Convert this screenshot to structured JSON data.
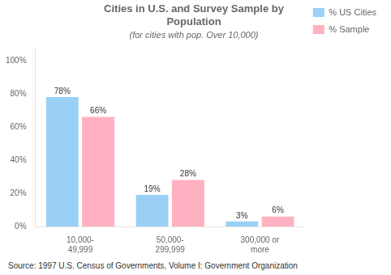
{
  "chart_data": {
    "type": "bar",
    "title": "Cities in U.S. and Survey Sample by\nPopulation",
    "subtitle": "(for cities with pop. Over 10,000)",
    "annotation": "Source: 1997 U.S. Census of Governments, Volume I: Government Organization",
    "categories": [
      "10,000-\n49,999",
      "50,000-\n299,999",
      "300,000 or\nmore"
    ],
    "series": [
      {
        "name": "% US Cities",
        "values": [
          78,
          19,
          3
        ],
        "value_labels": [
          "78%",
          "19%",
          "3%"
        ]
      },
      {
        "name": "% Sample",
        "values": [
          66,
          28,
          6
        ],
        "value_labels": [
          "66%",
          "28%",
          "6%"
        ]
      }
    ],
    "ylim": [
      0,
      108
    ],
    "yticks": [
      {
        "value": 0,
        "label": "0%"
      },
      {
        "value": 20,
        "label": "20%"
      },
      {
        "value": 40,
        "label": "40%"
      },
      {
        "value": 60,
        "label": "60%"
      },
      {
        "value": 80,
        "label": "80%"
      },
      {
        "value": 100,
        "label": "100%"
      }
    ],
    "grid": false,
    "legend": "right",
    "data_labels": true
  }
}
